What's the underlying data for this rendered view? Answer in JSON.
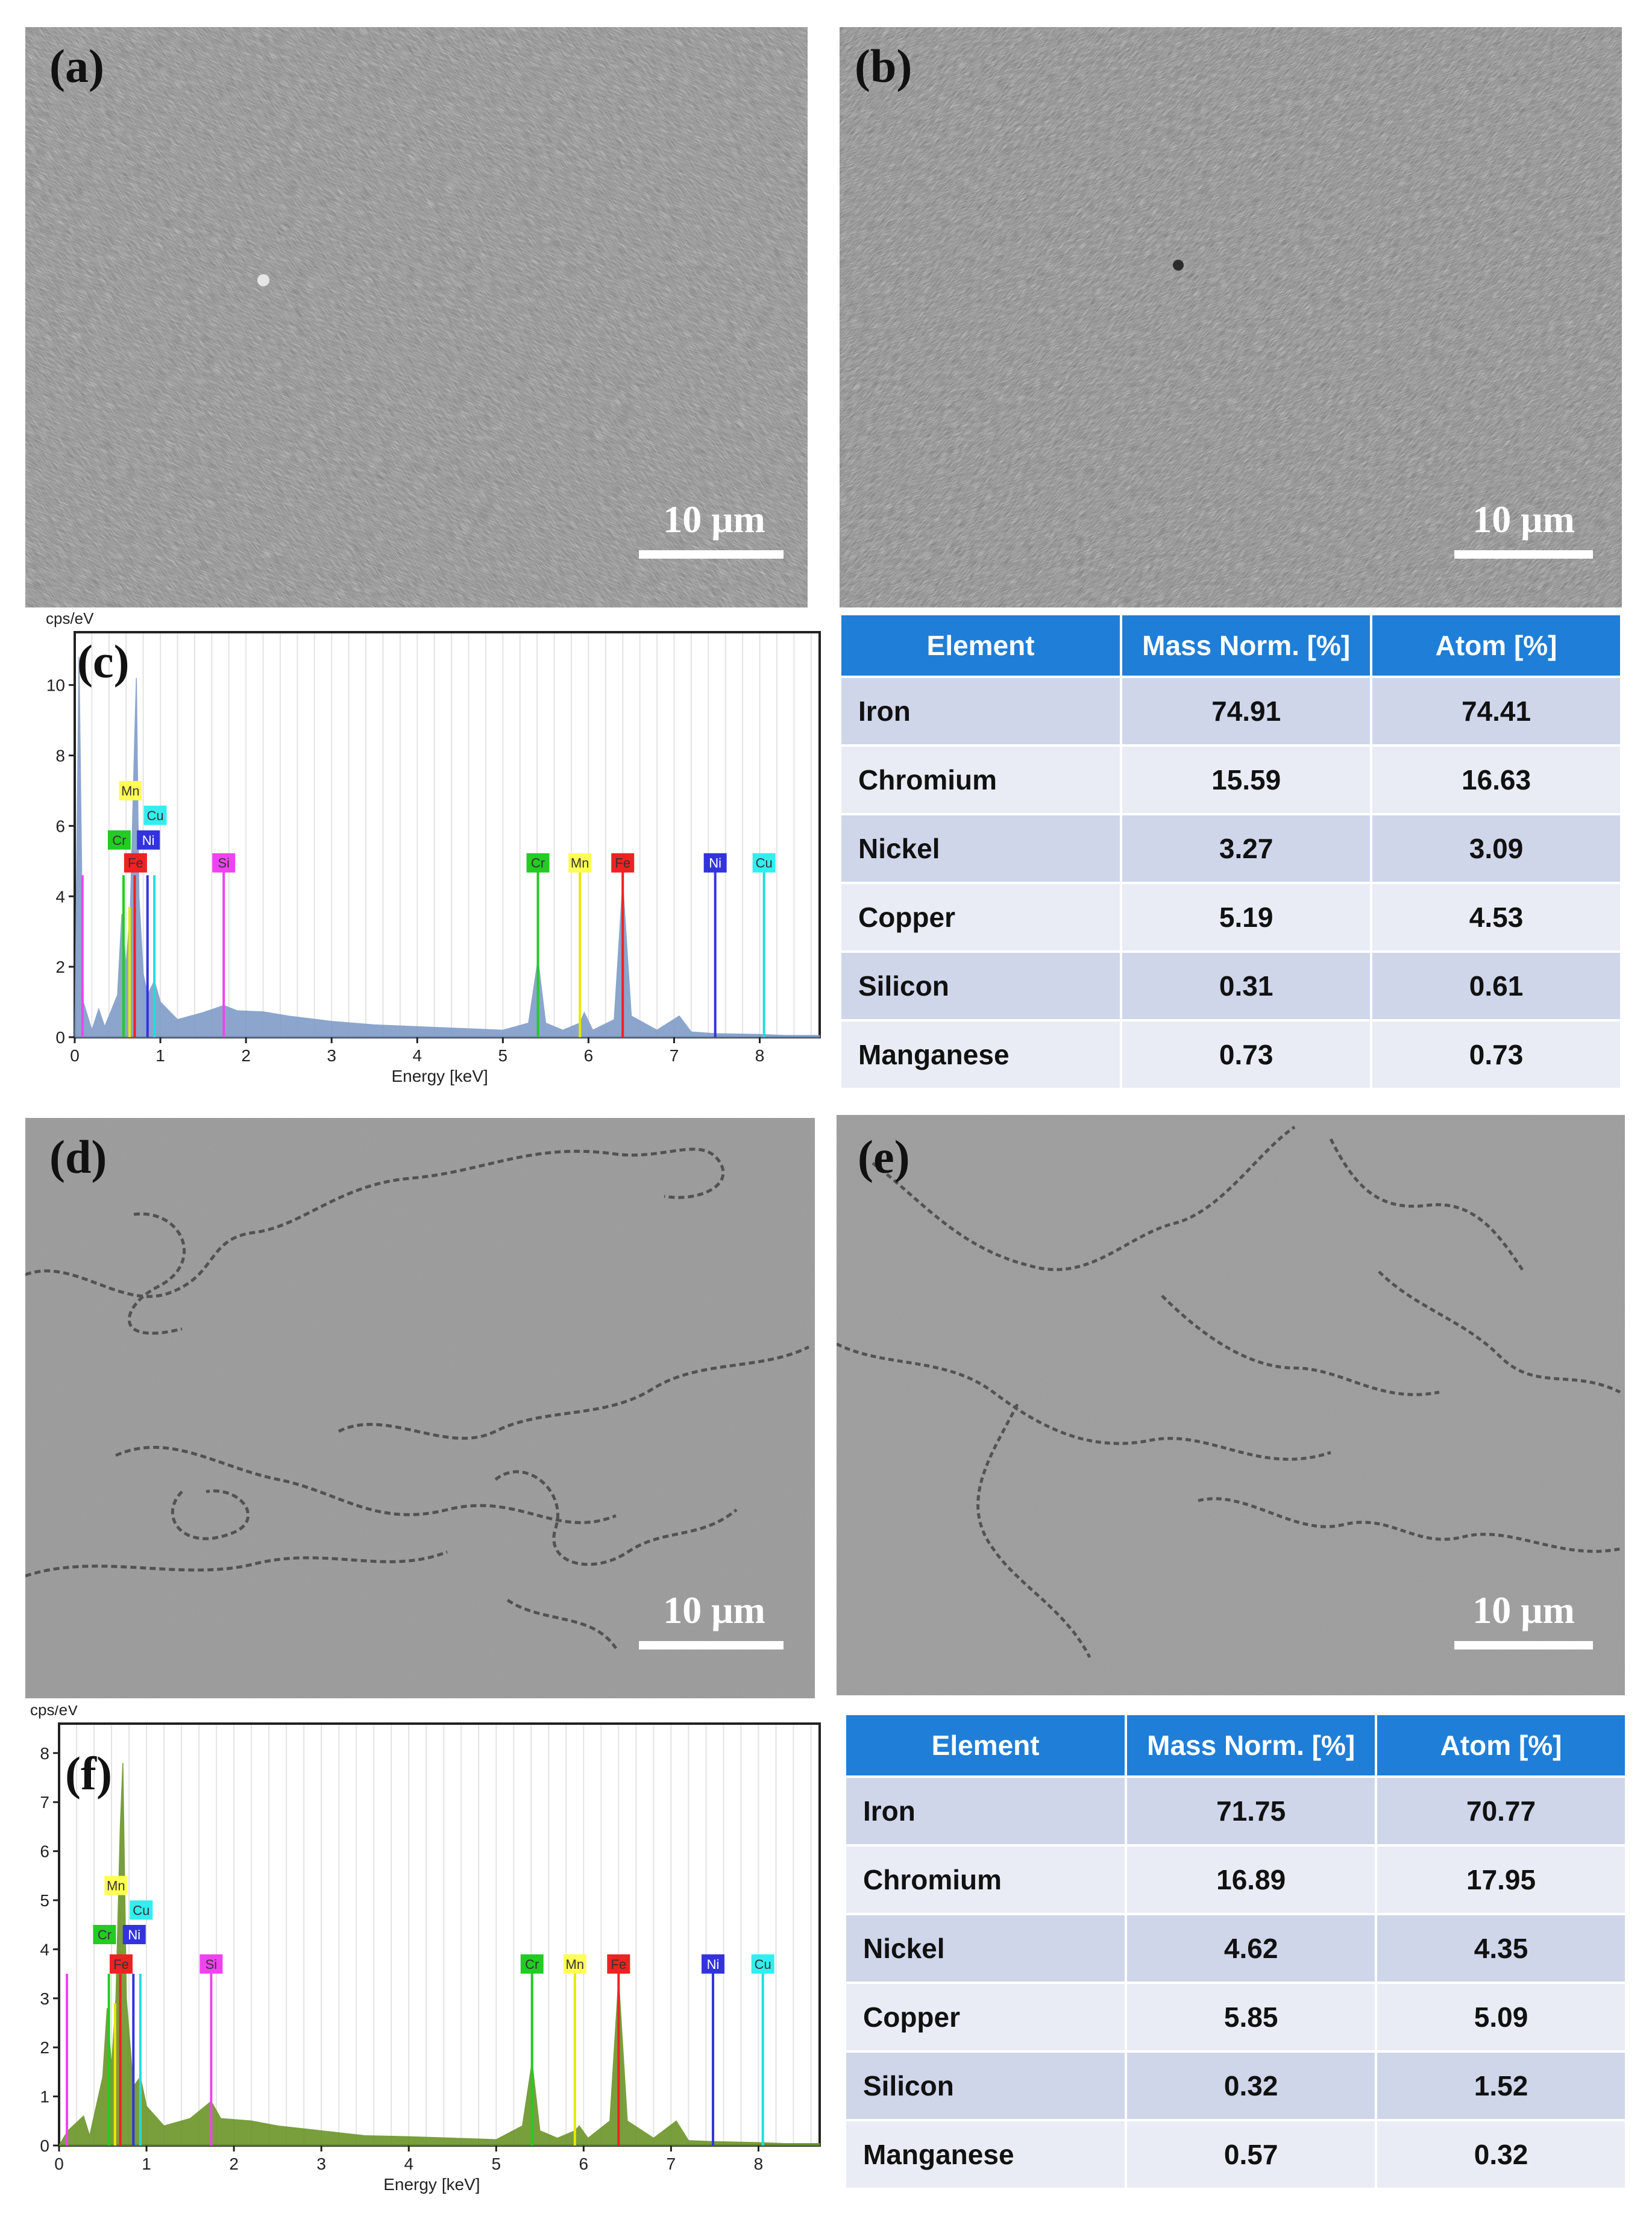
{
  "panels": {
    "a": {
      "label": "(a)",
      "scale": "10 μm"
    },
    "b": {
      "label": "(b)",
      "scale": "10 μm"
    },
    "c": {
      "label": "(c)"
    },
    "d": {
      "label": "(d)",
      "scale": "10 μm"
    },
    "e": {
      "label": "(e)",
      "scale": "10 μm"
    },
    "f": {
      "label": "(f)"
    }
  },
  "chart_data": [
    {
      "type": "area",
      "panel": "c",
      "ylabel": "cps/eV",
      "xlabel": "Energy [keV]",
      "xlim": [
        0,
        8.7
      ],
      "ylim": [
        0,
        11.5
      ],
      "xticks": [
        "0",
        "1",
        "2",
        "3",
        "4",
        "5",
        "6",
        "7",
        "8"
      ],
      "yticks": [
        "0",
        "2",
        "4",
        "6",
        "8",
        "10"
      ],
      "fill_color": "#7f9cc8",
      "spectrum": [
        [
          0,
          0
        ],
        [
          0.05,
          10.8
        ],
        [
          0.1,
          1.0
        ],
        [
          0.2,
          0.2
        ],
        [
          0.28,
          0.8
        ],
        [
          0.35,
          0.3
        ],
        [
          0.5,
          1.2
        ],
        [
          0.55,
          3.5
        ],
        [
          0.6,
          2.0
        ],
        [
          0.65,
          3.7
        ],
        [
          0.7,
          8.5
        ],
        [
          0.72,
          10.2
        ],
        [
          0.75,
          4.0
        ],
        [
          0.8,
          1.8
        ],
        [
          0.85,
          1.2
        ],
        [
          0.93,
          1.6
        ],
        [
          1.0,
          1.0
        ],
        [
          1.2,
          0.5
        ],
        [
          1.5,
          0.7
        ],
        [
          1.74,
          0.9
        ],
        [
          1.9,
          0.75
        ],
        [
          2.2,
          0.72
        ],
        [
          2.5,
          0.6
        ],
        [
          3.0,
          0.45
        ],
        [
          3.5,
          0.35
        ],
        [
          4.0,
          0.3
        ],
        [
          4.5,
          0.25
        ],
        [
          5.0,
          0.2
        ],
        [
          5.3,
          0.4
        ],
        [
          5.41,
          2.2
        ],
        [
          5.5,
          0.4
        ],
        [
          5.7,
          0.2
        ],
        [
          5.9,
          0.4
        ],
        [
          5.95,
          0.7
        ],
        [
          6.05,
          0.2
        ],
        [
          6.3,
          0.5
        ],
        [
          6.4,
          4.4
        ],
        [
          6.5,
          0.6
        ],
        [
          6.8,
          0.2
        ],
        [
          7.06,
          0.6
        ],
        [
          7.2,
          0.15
        ],
        [
          7.48,
          0.1
        ],
        [
          8.0,
          0.08
        ],
        [
          8.3,
          0.05
        ],
        [
          8.7,
          0.05
        ]
      ],
      "lines": [
        {
          "name": "Cr",
          "x": 0.57,
          "y": 4.6,
          "color": "#22cc22"
        },
        {
          "name": "Mn",
          "x": 0.64,
          "y": 3.7,
          "color": "#e8e800"
        },
        {
          "name": "Fe",
          "x": 0.7,
          "y": 4.6,
          "color": "#ee2222"
        },
        {
          "name": "Ni",
          "x": 0.85,
          "y": 4.6,
          "color": "#3333dd"
        },
        {
          "name": "Cu",
          "x": 0.93,
          "y": 4.6,
          "color": "#22dddd"
        },
        {
          "name": "Si",
          "x": 1.74,
          "y": 4.9,
          "color": "#ee44ee"
        },
        {
          "name": "Si-low",
          "x": 0.09,
          "y": 4.6,
          "color": "#ee44ee"
        },
        {
          "name": "Cr",
          "x": 5.41,
          "y": 4.9,
          "color": "#22cc22"
        },
        {
          "name": "Mn",
          "x": 5.9,
          "y": 4.9,
          "color": "#e8e800"
        },
        {
          "name": "Fe",
          "x": 6.4,
          "y": 4.9,
          "color": "#ee2222"
        },
        {
          "name": "Ni",
          "x": 7.48,
          "y": 4.9,
          "color": "#3333dd"
        },
        {
          "name": "Cu",
          "x": 8.05,
          "y": 4.9,
          "color": "#22dddd"
        }
      ],
      "tags": [
        {
          "text": "Mn",
          "x": 0.65,
          "y": 7.0,
          "color": "#ffff55"
        },
        {
          "text": "Cu",
          "x": 0.94,
          "y": 6.3,
          "color": "#33eeee"
        },
        {
          "text": "Cr",
          "x": 0.52,
          "y": 5.6,
          "color": "#22cc22"
        },
        {
          "text": "Ni",
          "x": 0.86,
          "y": 5.6,
          "color": "#3333dd"
        },
        {
          "text": "Fe",
          "x": 0.71,
          "y": 4.95,
          "color": "#ee2222"
        },
        {
          "text": "Si",
          "x": 1.74,
          "y": 4.95,
          "color": "#ee44ee"
        },
        {
          "text": "Cr",
          "x": 5.41,
          "y": 4.95,
          "color": "#22cc22"
        },
        {
          "text": "Mn",
          "x": 5.9,
          "y": 4.95,
          "color": "#ffff55"
        },
        {
          "text": "Fe",
          "x": 6.4,
          "y": 4.95,
          "color": "#ee2222"
        },
        {
          "text": "Ni",
          "x": 7.48,
          "y": 4.95,
          "color": "#3333dd"
        },
        {
          "text": "Cu",
          "x": 8.05,
          "y": 4.95,
          "color": "#33eeee"
        }
      ]
    },
    {
      "type": "area",
      "panel": "f",
      "ylabel": "cps/eV",
      "xlabel": "Energy [keV]",
      "xlim": [
        0,
        8.7
      ],
      "ylim": [
        0,
        8.6
      ],
      "xticks": [
        "0",
        "1",
        "2",
        "3",
        "4",
        "5",
        "6",
        "7",
        "8"
      ],
      "yticks": [
        "0",
        "1",
        "2",
        "3",
        "4",
        "5",
        "6",
        "7",
        "8"
      ],
      "fill_color": "#6b9428",
      "spectrum": [
        [
          0,
          0
        ],
        [
          0.1,
          0.3
        ],
        [
          0.28,
          0.6
        ],
        [
          0.35,
          0.2
        ],
        [
          0.5,
          1.4
        ],
        [
          0.55,
          2.8
        ],
        [
          0.6,
          1.6
        ],
        [
          0.65,
          3.0
        ],
        [
          0.7,
          6.5
        ],
        [
          0.73,
          7.8
        ],
        [
          0.77,
          3.0
        ],
        [
          0.85,
          1.2
        ],
        [
          0.93,
          1.4
        ],
        [
          1.0,
          0.8
        ],
        [
          1.2,
          0.4
        ],
        [
          1.5,
          0.55
        ],
        [
          1.74,
          0.9
        ],
        [
          1.85,
          0.55
        ],
        [
          2.2,
          0.5
        ],
        [
          2.5,
          0.4
        ],
        [
          3.0,
          0.3
        ],
        [
          3.5,
          0.2
        ],
        [
          4.0,
          0.18
        ],
        [
          4.5,
          0.15
        ],
        [
          5.0,
          0.12
        ],
        [
          5.3,
          0.4
        ],
        [
          5.41,
          1.7
        ],
        [
          5.5,
          0.3
        ],
        [
          5.7,
          0.15
        ],
        [
          5.9,
          0.3
        ],
        [
          5.95,
          0.4
        ],
        [
          6.05,
          0.15
        ],
        [
          6.3,
          0.5
        ],
        [
          6.4,
          3.4
        ],
        [
          6.5,
          0.5
        ],
        [
          6.8,
          0.15
        ],
        [
          7.06,
          0.5
        ],
        [
          7.2,
          0.1
        ],
        [
          7.48,
          0.08
        ],
        [
          8.0,
          0.06
        ],
        [
          8.3,
          0.04
        ],
        [
          8.7,
          0.04
        ]
      ],
      "lines": [
        {
          "name": "Si-low",
          "x": 0.09,
          "y": 3.5,
          "color": "#ee44ee"
        },
        {
          "name": "Cr",
          "x": 0.57,
          "y": 3.5,
          "color": "#22cc22"
        },
        {
          "name": "Mn",
          "x": 0.64,
          "y": 2.9,
          "color": "#e8e800"
        },
        {
          "name": "Fe",
          "x": 0.7,
          "y": 3.5,
          "color": "#ee2222"
        },
        {
          "name": "Ni",
          "x": 0.85,
          "y": 3.5,
          "color": "#3333dd"
        },
        {
          "name": "Cu",
          "x": 0.93,
          "y": 3.5,
          "color": "#22dddd"
        },
        {
          "name": "Si",
          "x": 1.74,
          "y": 3.6,
          "color": "#ee44ee"
        },
        {
          "name": "Cr",
          "x": 5.41,
          "y": 3.6,
          "color": "#22cc22"
        },
        {
          "name": "Mn",
          "x": 5.9,
          "y": 3.6,
          "color": "#e8e800"
        },
        {
          "name": "Fe",
          "x": 6.4,
          "y": 3.6,
          "color": "#ee2222"
        },
        {
          "name": "Ni",
          "x": 7.48,
          "y": 3.6,
          "color": "#3333dd"
        },
        {
          "name": "Cu",
          "x": 8.05,
          "y": 3.6,
          "color": "#22dddd"
        }
      ],
      "tags": [
        {
          "text": "Mn",
          "x": 0.65,
          "y": 5.3,
          "color": "#ffff55"
        },
        {
          "text": "Cu",
          "x": 0.94,
          "y": 4.8,
          "color": "#33eeee"
        },
        {
          "text": "Cr",
          "x": 0.52,
          "y": 4.3,
          "color": "#22cc22"
        },
        {
          "text": "Ni",
          "x": 0.86,
          "y": 4.3,
          "color": "#3333dd"
        },
        {
          "text": "Fe",
          "x": 0.71,
          "y": 3.7,
          "color": "#ee2222"
        },
        {
          "text": "Si",
          "x": 1.74,
          "y": 3.7,
          "color": "#ee44ee"
        },
        {
          "text": "Cr",
          "x": 5.41,
          "y": 3.7,
          "color": "#22cc22"
        },
        {
          "text": "Mn",
          "x": 5.9,
          "y": 3.7,
          "color": "#ffff55"
        },
        {
          "text": "Fe",
          "x": 6.4,
          "y": 3.7,
          "color": "#ee2222"
        },
        {
          "text": "Ni",
          "x": 7.48,
          "y": 3.7,
          "color": "#3333dd"
        },
        {
          "text": "Cu",
          "x": 8.05,
          "y": 3.7,
          "color": "#33eeee"
        }
      ]
    },
    {
      "type": "table",
      "panel": "c-table",
      "headers": [
        "Element",
        "Mass Norm. [%]",
        "Atom [%]"
      ],
      "rows": [
        [
          "Iron",
          "74.91",
          "74.41"
        ],
        [
          "Chromium",
          "15.59",
          "16.63"
        ],
        [
          "Nickel",
          "3.27",
          "3.09"
        ],
        [
          "Copper",
          "5.19",
          "4.53"
        ],
        [
          "Silicon",
          "0.31",
          "0.61"
        ],
        [
          "Manganese",
          "0.73",
          "0.73"
        ]
      ]
    },
    {
      "type": "table",
      "panel": "f-table",
      "headers": [
        "Element",
        "Mass Norm. [%]",
        "Atom [%]"
      ],
      "rows": [
        [
          "Iron",
          "71.75",
          "70.77"
        ],
        [
          "Chromium",
          "16.89",
          "17.95"
        ],
        [
          "Nickel",
          "4.62",
          "4.35"
        ],
        [
          "Copper",
          "5.85",
          "5.09"
        ],
        [
          "Silicon",
          "0.32",
          "1.52"
        ],
        [
          "Manganese",
          "0.57",
          "0.32"
        ]
      ]
    }
  ]
}
